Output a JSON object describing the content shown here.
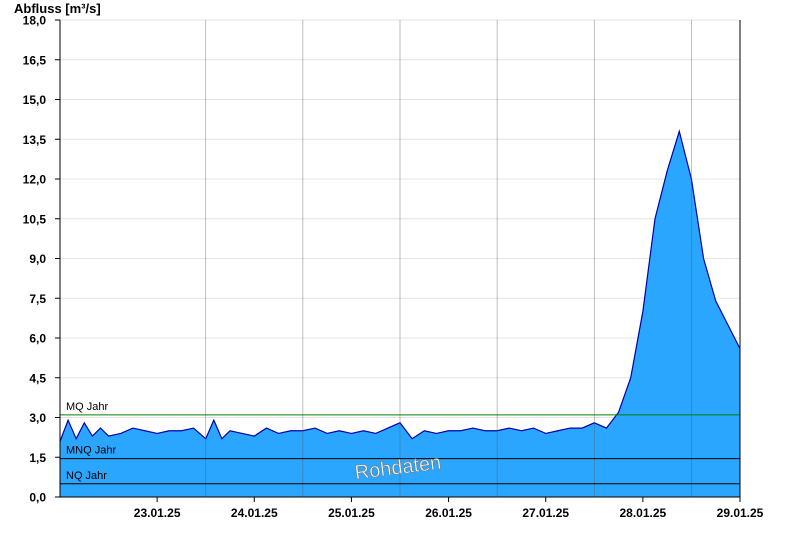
{
  "chart_data": {
    "type": "area",
    "ylabel": "Abfluss [m³/s]",
    "ylim": [
      0,
      18
    ],
    "yticks": [
      "0,0",
      "1,5",
      "3,0",
      "4,5",
      "6,0",
      "7,5",
      "9,0",
      "10,5",
      "12,0",
      "13,5",
      "15,0",
      "16,5",
      "18,0"
    ],
    "xlim": [
      "22.01.25 12:00",
      "29.01.25 12:00"
    ],
    "xticks": [
      "23.01.25",
      "24.01.25",
      "25.01.25",
      "26.01.25",
      "27.01.25",
      "28.01.25",
      "29.01.25"
    ],
    "watermark": "Rohdaten",
    "grid": true,
    "fill_color": "#2aa6ff",
    "line_color": "#0000aa",
    "reference_lines": [
      {
        "name": "MQ Jahr",
        "value": 3.1,
        "color": "#008000"
      },
      {
        "name": "MNQ Jahr",
        "value": 1.45,
        "color": "#000000"
      },
      {
        "name": "NQ Jahr",
        "value": 0.5,
        "color": "#000000"
      }
    ],
    "series": [
      {
        "x": [
          "22.01.25 12:00",
          "22.01.25 14:00",
          "22.01.25 16:00",
          "22.01.25 18:00",
          "22.01.25 20:00",
          "22.01.25 22:00",
          "23.01.25 00:00",
          "23.01.25 03:00",
          "23.01.25 06:00",
          "23.01.25 09:00",
          "23.01.25 12:00",
          "23.01.25 15:00",
          "23.01.25 18:00",
          "23.01.25 21:00",
          "24.01.25 00:00",
          "24.01.25 02:00",
          "24.01.25 04:00",
          "24.01.25 06:00",
          "24.01.25 09:00",
          "24.01.25 12:00",
          "24.01.25 15:00",
          "24.01.25 18:00",
          "24.01.25 21:00",
          "25.01.25 00:00",
          "25.01.25 03:00",
          "25.01.25 06:00",
          "25.01.25 09:00",
          "25.01.25 12:00",
          "25.01.25 15:00",
          "25.01.25 18:00",
          "25.01.25 21:00",
          "26.01.25 00:00",
          "26.01.25 03:00",
          "26.01.25 06:00",
          "26.01.25 09:00",
          "26.01.25 12:00",
          "26.01.25 15:00",
          "26.01.25 18:00",
          "26.01.25 21:00",
          "27.01.25 00:00",
          "27.01.25 03:00",
          "27.01.25 06:00",
          "27.01.25 09:00",
          "27.01.25 12:00",
          "27.01.25 15:00",
          "27.01.25 18:00",
          "27.01.25 21:00",
          "28.01.25 00:00",
          "28.01.25 03:00",
          "28.01.25 06:00",
          "28.01.25 09:00",
          "28.01.25 12:00",
          "28.01.25 15:00",
          "28.01.25 18:00",
          "28.01.25 21:00",
          "29.01.25 00:00",
          "29.01.25 03:00",
          "29.01.25 06:00",
          "29.01.25 09:00",
          "29.01.25 12:00"
        ],
        "y": [
          2.1,
          2.9,
          2.2,
          2.8,
          2.3,
          2.6,
          2.3,
          2.4,
          2.6,
          2.5,
          2.4,
          2.5,
          2.5,
          2.6,
          2.2,
          2.9,
          2.2,
          2.5,
          2.4,
          2.3,
          2.6,
          2.4,
          2.5,
          2.5,
          2.6,
          2.4,
          2.5,
          2.4,
          2.5,
          2.4,
          2.6,
          2.8,
          2.2,
          2.5,
          2.4,
          2.5,
          2.5,
          2.6,
          2.5,
          2.5,
          2.6,
          2.5,
          2.6,
          2.4,
          2.5,
          2.6,
          2.6,
          2.8,
          2.6,
          3.2,
          4.5,
          7.0,
          10.5,
          12.3,
          13.8,
          12.0,
          9.0,
          7.4,
          6.5,
          5.6
        ]
      }
    ]
  }
}
